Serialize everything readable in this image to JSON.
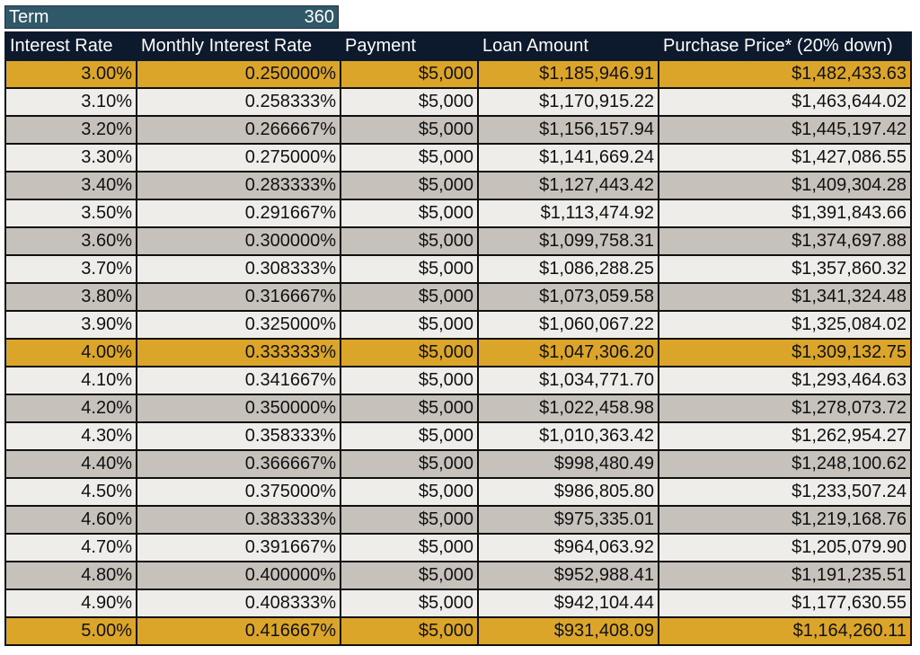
{
  "term": {
    "label": "Term",
    "value": "360"
  },
  "headers": [
    "Interest Rate",
    "Monthly Interest Rate",
    "Payment",
    "Loan Amount",
    "Purchase Price* (20% down)"
  ],
  "colors": {
    "gold": "#dba52a",
    "light": "#efedea",
    "grey": "#c7c1bb",
    "header": "#0d1a2e",
    "term": "#2f5868"
  },
  "rows": [
    {
      "style": "gold",
      "cells": [
        "3.00%",
        "0.250000%",
        "$5,000",
        "$1,185,946.91",
        "$1,482,433.63"
      ]
    },
    {
      "style": "light",
      "cells": [
        "3.10%",
        "0.258333%",
        "$5,000",
        "$1,170,915.22",
        "$1,463,644.02"
      ]
    },
    {
      "style": "grey",
      "cells": [
        "3.20%",
        "0.266667%",
        "$5,000",
        "$1,156,157.94",
        "$1,445,197.42"
      ]
    },
    {
      "style": "light",
      "cells": [
        "3.30%",
        "0.275000%",
        "$5,000",
        "$1,141,669.24",
        "$1,427,086.55"
      ]
    },
    {
      "style": "grey",
      "cells": [
        "3.40%",
        "0.283333%",
        "$5,000",
        "$1,127,443.42",
        "$1,409,304.28"
      ]
    },
    {
      "style": "light",
      "cells": [
        "3.50%",
        "0.291667%",
        "$5,000",
        "$1,113,474.92",
        "$1,391,843.66"
      ]
    },
    {
      "style": "grey",
      "cells": [
        "3.60%",
        "0.300000%",
        "$5,000",
        "$1,099,758.31",
        "$1,374,697.88"
      ]
    },
    {
      "style": "light",
      "cells": [
        "3.70%",
        "0.308333%",
        "$5,000",
        "$1,086,288.25",
        "$1,357,860.32"
      ]
    },
    {
      "style": "grey",
      "cells": [
        "3.80%",
        "0.316667%",
        "$5,000",
        "$1,073,059.58",
        "$1,341,324.48"
      ]
    },
    {
      "style": "light",
      "cells": [
        "3.90%",
        "0.325000%",
        "$5,000",
        "$1,060,067.22",
        "$1,325,084.02"
      ]
    },
    {
      "style": "gold",
      "cells": [
        "4.00%",
        "0.333333%",
        "$5,000",
        "$1,047,306.20",
        "$1,309,132.75"
      ]
    },
    {
      "style": "light",
      "cells": [
        "4.10%",
        "0.341667%",
        "$5,000",
        "$1,034,771.70",
        "$1,293,464.63"
      ]
    },
    {
      "style": "grey",
      "cells": [
        "4.20%",
        "0.350000%",
        "$5,000",
        "$1,022,458.98",
        "$1,278,073.72"
      ]
    },
    {
      "style": "light",
      "cells": [
        "4.30%",
        "0.358333%",
        "$5,000",
        "$1,010,363.42",
        "$1,262,954.27"
      ]
    },
    {
      "style": "grey",
      "cells": [
        "4.40%",
        "0.366667%",
        "$5,000",
        "$998,480.49",
        "$1,248,100.62"
      ]
    },
    {
      "style": "light",
      "cells": [
        "4.50%",
        "0.375000%",
        "$5,000",
        "$986,805.80",
        "$1,233,507.24"
      ]
    },
    {
      "style": "grey",
      "cells": [
        "4.60%",
        "0.383333%",
        "$5,000",
        "$975,335.01",
        "$1,219,168.76"
      ]
    },
    {
      "style": "light",
      "cells": [
        "4.70%",
        "0.391667%",
        "$5,000",
        "$964,063.92",
        "$1,205,079.90"
      ]
    },
    {
      "style": "grey",
      "cells": [
        "4.80%",
        "0.400000%",
        "$5,000",
        "$952,988.41",
        "$1,191,235.51"
      ]
    },
    {
      "style": "light",
      "cells": [
        "4.90%",
        "0.408333%",
        "$5,000",
        "$942,104.44",
        "$1,177,630.55"
      ]
    },
    {
      "style": "gold",
      "cells": [
        "5.00%",
        "0.416667%",
        "$5,000",
        "$931,408.09",
        "$1,164,260.11"
      ]
    }
  ]
}
